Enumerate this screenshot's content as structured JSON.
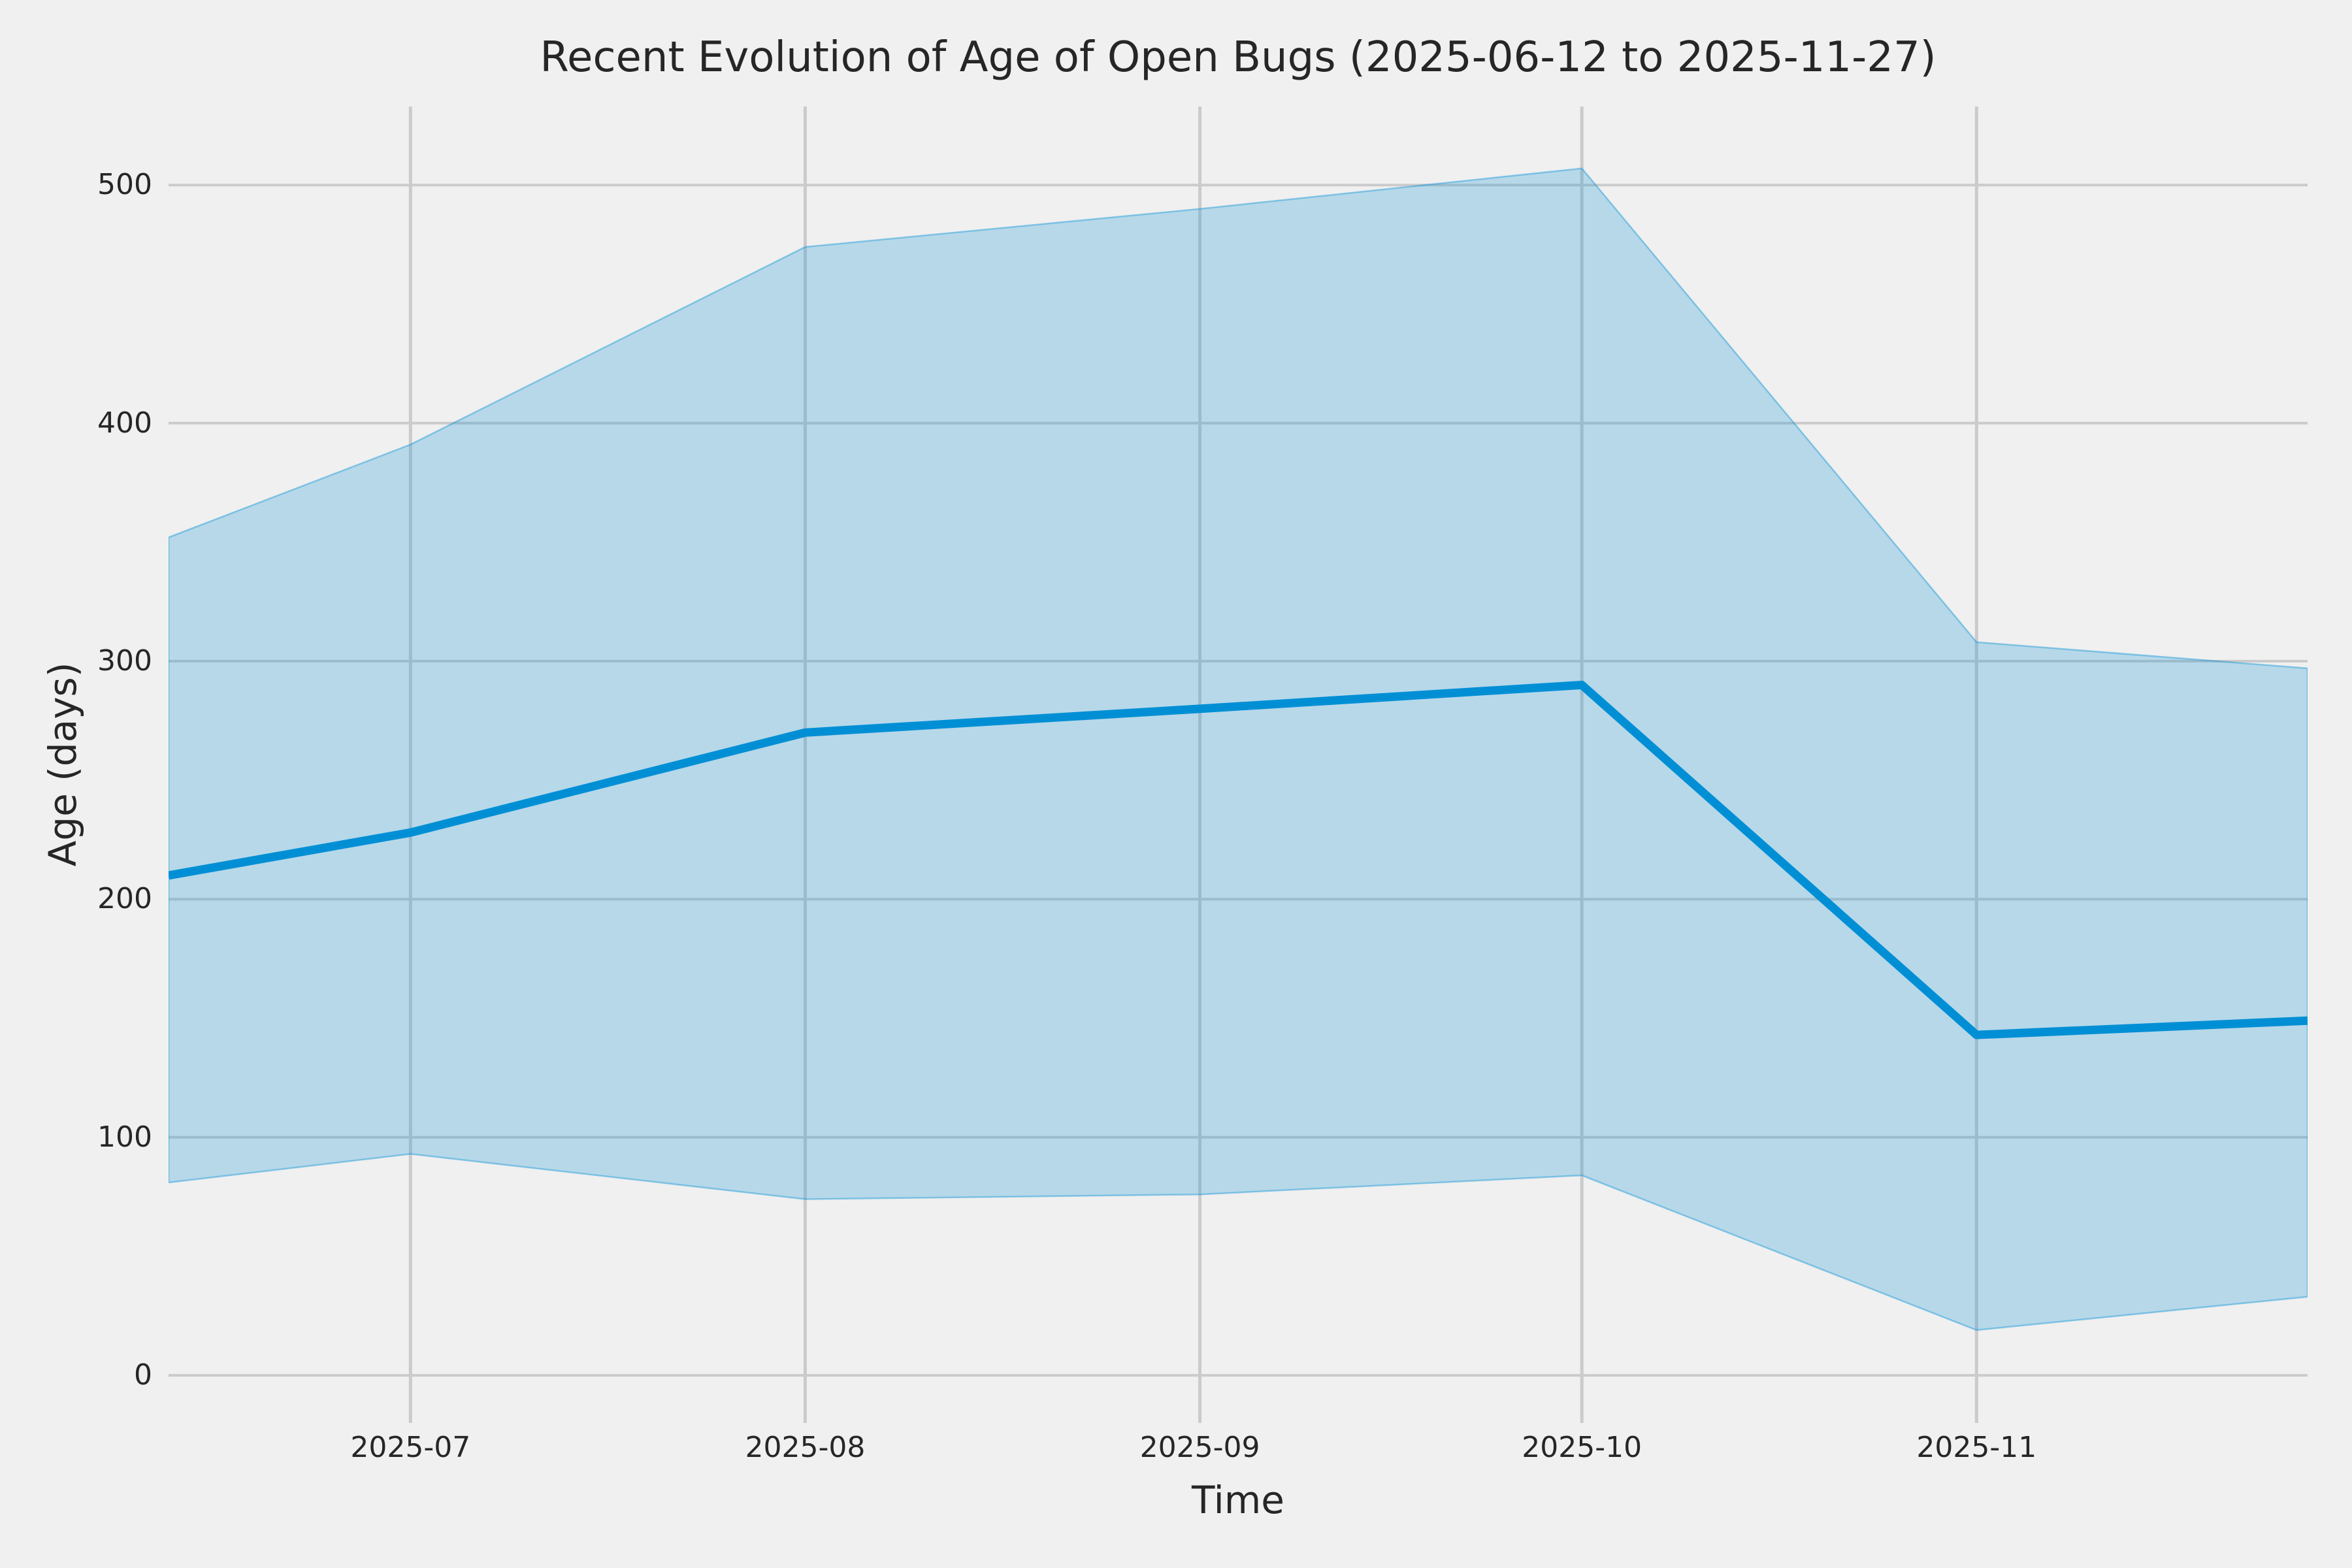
{
  "chart_data": {
    "type": "area",
    "title": "Recent Evolution of Age of Open Bugs (2025-06-12 to 2025-11-27)",
    "xlabel": "Time",
    "ylabel": "Age (days)",
    "x_dates": [
      "2025-06-12",
      "2025-07-01",
      "2025-08-01",
      "2025-09-01",
      "2025-10-01",
      "2025-11-01",
      "2025-11-27"
    ],
    "x_days": [
      0,
      19,
      50,
      81,
      111,
      142,
      168
    ],
    "series": [
      {
        "name": "median_age_line",
        "values": [
          210,
          228,
          270,
          280,
          290,
          143,
          149
        ]
      },
      {
        "name": "band_upper",
        "values": [
          352,
          391,
          474,
          490,
          507,
          308,
          297
        ]
      },
      {
        "name": "band_lower",
        "values": [
          81,
          93,
          74,
          76,
          84,
          19,
          33
        ]
      }
    ],
    "x_ticks": [
      {
        "label": "2025-07",
        "day": 19
      },
      {
        "label": "2025-08",
        "day": 50
      },
      {
        "label": "2025-09",
        "day": 81
      },
      {
        "label": "2025-10",
        "day": 111
      },
      {
        "label": "2025-11",
        "day": 142
      }
    ],
    "y_ticks": [
      0,
      100,
      200,
      300,
      400,
      500
    ],
    "xlim_days": [
      0,
      168
    ],
    "ylim": [
      -20,
      533
    ],
    "grid": true,
    "legend": "none",
    "colors": {
      "background": "#f0f0f0",
      "grid": "#cbcbcb",
      "line": "#008fd5",
      "band": "#008fd5",
      "band_opacity": "0.24",
      "band_edge_opacity": "0.4",
      "text": "#262626"
    }
  }
}
